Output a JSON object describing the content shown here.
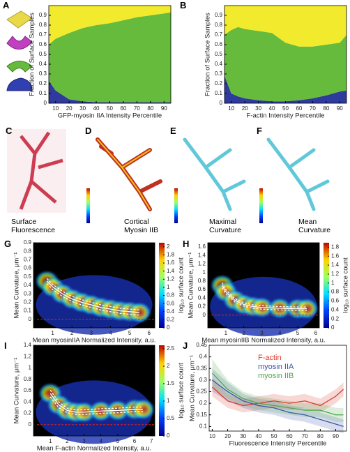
{
  "chart_data": [
    {
      "type": "area",
      "panel": "A",
      "xlabel": "GFP-myosin IIA Intensity Percentile",
      "ylabel": "Fraction of Surface Samples",
      "x": [
        5,
        10,
        20,
        30,
        40,
        50,
        60,
        70,
        80,
        90,
        95
      ],
      "series": [
        {
          "color": "#2e3a9c",
          "values": [
            0.23,
            0.13,
            0.04,
            0.02,
            0.01,
            0.01,
            0.01,
            0.01,
            0.01,
            0.01,
            0.01
          ]
        },
        {
          "color": "#66bb3c",
          "values": [
            0.37,
            0.53,
            0.68,
            0.75,
            0.79,
            0.81,
            0.84,
            0.87,
            0.89,
            0.91,
            0.92
          ]
        },
        {
          "color": "#f2ea2c",
          "values": [
            0.4,
            0.34,
            0.28,
            0.23,
            0.2,
            0.18,
            0.15,
            0.12,
            0.1,
            0.08,
            0.07
          ]
        }
      ],
      "xlim": [
        5,
        95
      ],
      "xticks": [
        10,
        20,
        30,
        40,
        50,
        60,
        70,
        80,
        90
      ],
      "ylim": [
        0,
        1
      ],
      "yticks": [
        0,
        0.1,
        0.2,
        0.3,
        0.4,
        0.5,
        0.6,
        0.7,
        0.8,
        0.9
      ]
    },
    {
      "type": "area",
      "panel": "B",
      "xlabel": "F-actin Intensity Percentile",
      "ylabel": "Fraction of Surface Samples",
      "x": [
        5,
        10,
        15,
        20,
        30,
        40,
        50,
        60,
        70,
        80,
        90,
        95
      ],
      "series": [
        {
          "color": "#2e3a9c",
          "values": [
            0.28,
            0.1,
            0.07,
            0.05,
            0.03,
            0.02,
            0.02,
            0.03,
            0.05,
            0.08,
            0.12,
            0.13
          ]
        },
        {
          "color": "#66bb3c",
          "values": [
            0.42,
            0.65,
            0.71,
            0.71,
            0.71,
            0.7,
            0.6,
            0.55,
            0.53,
            0.52,
            0.5,
            0.57
          ]
        },
        {
          "color": "#f2ea2c",
          "values": [
            0.3,
            0.25,
            0.22,
            0.24,
            0.26,
            0.28,
            0.38,
            0.42,
            0.42,
            0.4,
            0.38,
            0.3
          ]
        }
      ],
      "xlim": [
        5,
        95
      ],
      "xticks": [
        10,
        20,
        30,
        40,
        50,
        60,
        70,
        80,
        90
      ],
      "ylim": [
        0,
        1
      ],
      "yticks": [
        0,
        0.1,
        0.2,
        0.3,
        0.4,
        0.5,
        0.6,
        0.7,
        0.8,
        0.9
      ]
    },
    {
      "type": "density",
      "panel": "G",
      "xlabel": "Mean myosinIIA Normalized Intensity, a.u.",
      "ylabel": "Mean Curvature, μm⁻¹",
      "x": [
        0.7,
        1,
        1.5,
        2,
        2.5,
        3,
        3.5,
        4,
        4.5,
        5,
        5.5
      ],
      "values": [
        0.45,
        0.38,
        0.3,
        0.24,
        0.2,
        0.17,
        0.14,
        0.12,
        0.1,
        0.09,
        0.08
      ],
      "errors": [
        0.03,
        0.03,
        0.03,
        0.03,
        0.03,
        0.03,
        0.03,
        0.03,
        0.03,
        0.03,
        0.03
      ],
      "hline": 0,
      "xlim": [
        0,
        6.3
      ],
      "xticks": [
        1,
        2,
        3,
        4,
        5,
        6
      ],
      "ylim": [
        -0.1,
        0.9
      ],
      "yticks": [
        0,
        0.1,
        0.2,
        0.3,
        0.4,
        0.5,
        0.6,
        0.7,
        0.8,
        0.9
      ],
      "colorbar": {
        "label": "log₁₀ surface count",
        "lim": [
          0,
          2.1
        ],
        "ticks": [
          0,
          0.2,
          0.4,
          0.6,
          0.8,
          1,
          1.2,
          1.4,
          1.6,
          1.8,
          2
        ]
      }
    },
    {
      "type": "density",
      "panel": "H",
      "xlabel": "Mean myosinIIB Normalized Intensity, a.u.",
      "ylabel": "Mean Curvature, μm⁻¹",
      "x": [
        0.8,
        1,
        1.5,
        2,
        2.5,
        3,
        4,
        5,
        5.5
      ],
      "values": [
        0.7,
        0.55,
        0.35,
        0.25,
        0.2,
        0.18,
        0.16,
        0.15,
        0.15
      ],
      "errors": [
        0.06,
        0.05,
        0.04,
        0.04,
        0.04,
        0.04,
        0.04,
        0.04,
        0.04
      ],
      "hline": 0,
      "xlim": [
        0,
        6.2
      ],
      "xticks": [
        1,
        2,
        3,
        4,
        5,
        6
      ],
      "ylim": [
        -0.3,
        1.7
      ],
      "yticks": [
        0,
        0.2,
        0.4,
        0.6,
        0.8,
        1,
        1.2,
        1.4,
        1.6
      ],
      "colorbar": {
        "label": "log₁₀ surface count",
        "lim": [
          0,
          1.9
        ],
        "ticks": [
          0,
          0.2,
          0.4,
          0.6,
          0.8,
          1,
          1.2,
          1.4,
          1.6,
          1.8
        ]
      }
    },
    {
      "type": "density",
      "panel": "I",
      "xlabel": "Mean F-actin Normalized Intensity, a.u.",
      "ylabel": "Mean Curvature, μm⁻¹",
      "x": [
        1,
        1.5,
        2,
        2.5,
        3,
        4,
        5,
        6,
        6.5
      ],
      "values": [
        0.55,
        0.35,
        0.25,
        0.22,
        0.22,
        0.24,
        0.25,
        0.27,
        0.27
      ],
      "errors": [
        0.06,
        0.05,
        0.04,
        0.04,
        0.04,
        0.04,
        0.04,
        0.04,
        0.04
      ],
      "hline": 0,
      "xlim": [
        0,
        7.2
      ],
      "xticks": [
        1,
        2,
        3,
        4,
        5,
        6,
        7
      ],
      "ylim": [
        -0.2,
        1.4
      ],
      "yticks": [
        0,
        0.2,
        0.4,
        0.6,
        0.8,
        1,
        1.2,
        1.4
      ],
      "colorbar": {
        "label": "log₁₀ surface count",
        "lim": [
          0,
          2.6
        ],
        "ticks": [
          0,
          0.5,
          1,
          1.5,
          2,
          2.5
        ]
      }
    },
    {
      "type": "line",
      "panel": "J",
      "xlabel": "Fluorescence Intensity Percentile",
      "ylabel": "Mean Curvature, μm⁻¹",
      "x": [
        10,
        20,
        30,
        40,
        50,
        60,
        70,
        80,
        90,
        95
      ],
      "series": [
        {
          "name": "F-actin",
          "color": "#d93a2f",
          "values": [
            0.27,
            0.21,
            0.19,
            0.2,
            0.21,
            0.2,
            0.21,
            0.19,
            0.23,
            0.26
          ],
          "errors": [
            0.04,
            0.03,
            0.03,
            0.03,
            0.03,
            0.03,
            0.03,
            0.03,
            0.03,
            0.03
          ]
        },
        {
          "name": "myosin IIA",
          "color": "#3a56a8",
          "values": [
            0.3,
            0.25,
            0.21,
            0.19,
            0.18,
            0.16,
            0.15,
            0.13,
            0.11,
            0.1
          ],
          "errors": [
            0.05,
            0.04,
            0.03,
            0.03,
            0.03,
            0.03,
            0.03,
            0.03,
            0.03,
            0.03
          ]
        },
        {
          "name": "myosin IIB",
          "color": "#4fa84a",
          "values": [
            0.33,
            0.26,
            0.22,
            0.2,
            0.19,
            0.18,
            0.17,
            0.17,
            0.15,
            0.15
          ],
          "errors": [
            0.06,
            0.04,
            0.03,
            0.03,
            0.03,
            0.03,
            0.03,
            0.03,
            0.03,
            0.03
          ]
        }
      ],
      "xlim": [
        8,
        97
      ],
      "xticks": [
        10,
        20,
        30,
        40,
        50,
        60,
        70,
        80,
        90
      ],
      "ylim": [
        0.08,
        0.45
      ],
      "yticks": [
        0.1,
        0.15,
        0.2,
        0.25,
        0.3,
        0.35,
        0.4,
        0.45
      ]
    }
  ],
  "figure_panels": [
    {
      "panel": "C",
      "caption": "Surface Fluorescence"
    },
    {
      "panel": "D",
      "caption": "Cortical Myosin IIB"
    },
    {
      "panel": "E",
      "caption": "Maximal Curvature"
    },
    {
      "panel": "F",
      "caption": "Mean Curvature"
    }
  ]
}
